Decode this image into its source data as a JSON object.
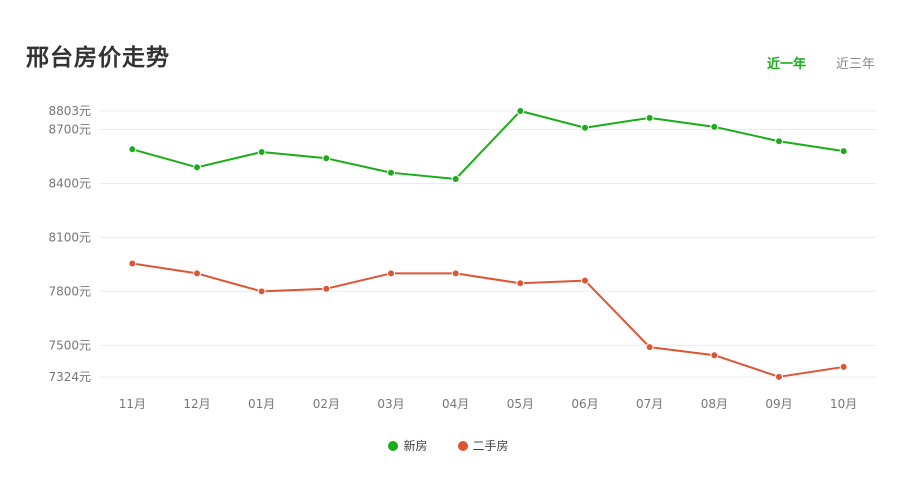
{
  "page": {
    "title": "邢台房价走势",
    "tabs": [
      {
        "label": "近一年",
        "active": true
      },
      {
        "label": "近三年",
        "active": false
      }
    ]
  },
  "chart_data": {
    "type": "line",
    "title": "邢台房价走势",
    "xlabel": "",
    "ylabel": "",
    "categories": [
      "11月",
      "12月",
      "01月",
      "02月",
      "03月",
      "04月",
      "05月",
      "06月",
      "07月",
      "08月",
      "09月",
      "10月"
    ],
    "y_ticks": [
      7324,
      7500,
      7800,
      8100,
      8400,
      8700,
      8803
    ],
    "y_tick_labels": [
      "7324元",
      "7500元",
      "7800元",
      "8100元",
      "8400元",
      "8700元",
      "8803元"
    ],
    "ylim": [
      7324,
      8803
    ],
    "grid": true,
    "legend_position": "bottom-center",
    "series": [
      {
        "name": "新房",
        "color": "#1aad19",
        "values": [
          8590,
          8490,
          8575,
          8540,
          8460,
          8425,
          8803,
          8710,
          8765,
          8715,
          8635,
          8580
        ]
      },
      {
        "name": "二手房",
        "color": "#dd5533",
        "values": [
          7955,
          7900,
          7800,
          7815,
          7900,
          7900,
          7845,
          7860,
          7490,
          7445,
          7325,
          7380
        ]
      }
    ]
  }
}
